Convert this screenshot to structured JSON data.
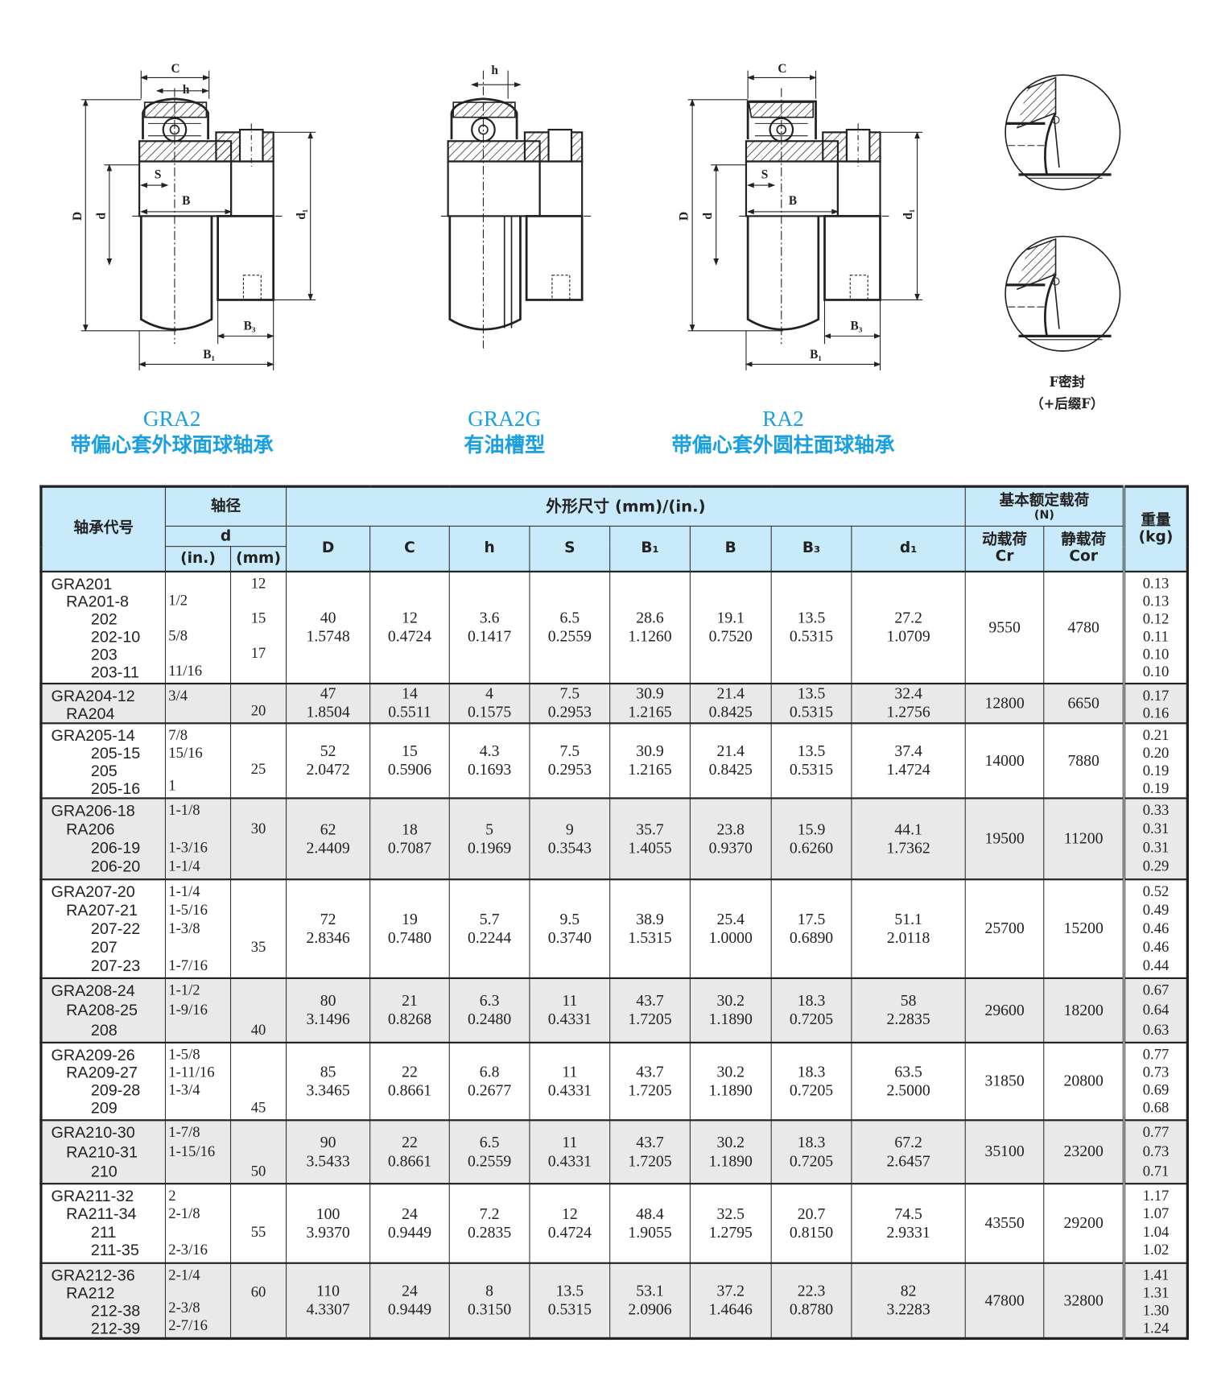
{
  "diagrams": [
    {
      "model": "GRA2",
      "caption": "带偏心套外球面球轴承",
      "labels": {
        "C": "C",
        "h": "h",
        "S": "S",
        "B": "B",
        "D": "D",
        "d": "d",
        "d1": "d₁",
        "B3": "B₃",
        "B1": "B₁"
      }
    },
    {
      "model": "GRA2G",
      "caption": "有油槽型",
      "labels": {
        "h": "h"
      }
    },
    {
      "model": "RA2",
      "caption": "带偏心套外圆柱面球轴承",
      "labels": {
        "C": "C",
        "S": "S",
        "B": "B",
        "D": "D",
        "d": "d",
        "d1": "d₁",
        "B3": "B₃",
        "B1": "B₁"
      }
    }
  ],
  "seal": {
    "title": "F密封",
    "suffix": "（+后缀F）"
  },
  "colors": {
    "caption": "#1aa0e0",
    "header_bg": "#c8eafa",
    "alt_row_bg": "#e9e9e9"
  },
  "table": {
    "headers": {
      "model": "轴承代号",
      "shaft": "轴径",
      "d": "d",
      "inch": "(in.)",
      "mm": "(mm)",
      "dims": "外形尺寸 (mm)/(in.)",
      "dim_cols": [
        "D",
        "C",
        "h",
        "S",
        "B₁",
        "B",
        "B₃",
        "d₁"
      ],
      "load": "基本额定载荷",
      "load_unit": "(N)",
      "cr": "动载荷",
      "cr_sym": "Cr",
      "cor": "静载荷",
      "cor_sym": "Cor",
      "weight": "重量",
      "weight_unit": "(kg)"
    },
    "rows": [
      {
        "models": [
          "GRA201",
          "RA201-8",
          "202",
          "202-10",
          "203",
          "203-11"
        ],
        "inch": [
          "",
          "1/2",
          "",
          "5/8",
          "",
          "11/16"
        ],
        "mm": [
          "12",
          "",
          "15",
          "",
          "17",
          ""
        ],
        "dims": [
          [
            "40",
            "1.5748"
          ],
          [
            "12",
            "0.4724"
          ],
          [
            "3.6",
            "0.1417"
          ],
          [
            "6.5",
            "0.2559"
          ],
          [
            "28.6",
            "1.1260"
          ],
          [
            "19.1",
            "0.7520"
          ],
          [
            "13.5",
            "0.5315"
          ],
          [
            "27.2",
            "1.0709"
          ]
        ],
        "cr": "9550",
        "cor": "4780",
        "weights": [
          "0.13",
          "0.13",
          "0.12",
          "0.11",
          "0.10",
          "0.10"
        ]
      },
      {
        "models": [
          "GRA204-12",
          "RA204"
        ],
        "inch": [
          "3/4",
          ""
        ],
        "mm": [
          "",
          "20"
        ],
        "dims": [
          [
            "47",
            "1.8504"
          ],
          [
            "14",
            "0.5511"
          ],
          [
            "4",
            "0.1575"
          ],
          [
            "7.5",
            "0.2953"
          ],
          [
            "30.9",
            "1.2165"
          ],
          [
            "21.4",
            "0.8425"
          ],
          [
            "13.5",
            "0.5315"
          ],
          [
            "32.4",
            "1.2756"
          ]
        ],
        "cr": "12800",
        "cor": "6650",
        "weights": [
          "0.17",
          "0.16"
        ]
      },
      {
        "models": [
          "GRA205-14",
          "205-15",
          "205",
          "205-16"
        ],
        "inch": [
          "7/8",
          "15/16",
          "",
          "1"
        ],
        "mm": [
          "",
          "",
          "25",
          ""
        ],
        "dims": [
          [
            "52",
            "2.0472"
          ],
          [
            "15",
            "0.5906"
          ],
          [
            "4.3",
            "0.1693"
          ],
          [
            "7.5",
            "0.2953"
          ],
          [
            "30.9",
            "1.2165"
          ],
          [
            "21.4",
            "0.8425"
          ],
          [
            "13.5",
            "0.5315"
          ],
          [
            "37.4",
            "1.4724"
          ]
        ],
        "cr": "14000",
        "cor": "7880",
        "weights": [
          "0.21",
          "0.20",
          "0.19",
          "0.19"
        ]
      },
      {
        "models": [
          "GRA206-18",
          "RA206",
          "206-19",
          "206-20"
        ],
        "inch": [
          "1-1/8",
          "",
          "1-3/16",
          "1-1/4"
        ],
        "mm": [
          "",
          "30",
          "",
          ""
        ],
        "dims": [
          [
            "62",
            "2.4409"
          ],
          [
            "18",
            "0.7087"
          ],
          [
            "5",
            "0.1969"
          ],
          [
            "9",
            "0.3543"
          ],
          [
            "35.7",
            "1.4055"
          ],
          [
            "23.8",
            "0.9370"
          ],
          [
            "15.9",
            "0.6260"
          ],
          [
            "44.1",
            "1.7362"
          ]
        ],
        "cr": "19500",
        "cor": "11200",
        "weights": [
          "0.33",
          "0.31",
          "0.31",
          "0.29"
        ]
      },
      {
        "models": [
          "GRA207-20",
          "RA207-21",
          "207-22",
          "207",
          "207-23"
        ],
        "inch": [
          "1-1/4",
          "1-5/16",
          "1-3/8",
          "",
          "1-7/16"
        ],
        "mm": [
          "",
          "",
          "",
          "35",
          ""
        ],
        "dims": [
          [
            "72",
            "2.8346"
          ],
          [
            "19",
            "0.7480"
          ],
          [
            "5.7",
            "0.2244"
          ],
          [
            "9.5",
            "0.3740"
          ],
          [
            "38.9",
            "1.5315"
          ],
          [
            "25.4",
            "1.0000"
          ],
          [
            "17.5",
            "0.6890"
          ],
          [
            "51.1",
            "2.0118"
          ]
        ],
        "cr": "25700",
        "cor": "15200",
        "weights": [
          "0.52",
          "0.49",
          "0.46",
          "0.46",
          "0.44"
        ]
      },
      {
        "models": [
          "GRA208-24",
          "RA208-25",
          "208"
        ],
        "inch": [
          "1-1/2",
          "1-9/16",
          ""
        ],
        "mm": [
          "",
          "",
          "40"
        ],
        "dims": [
          [
            "80",
            "3.1496"
          ],
          [
            "21",
            "0.8268"
          ],
          [
            "6.3",
            "0.2480"
          ],
          [
            "11",
            "0.4331"
          ],
          [
            "43.7",
            "1.7205"
          ],
          [
            "30.2",
            "1.1890"
          ],
          [
            "18.3",
            "0.7205"
          ],
          [
            "58",
            "2.2835"
          ]
        ],
        "cr": "29600",
        "cor": "18200",
        "weights": [
          "0.67",
          "0.64",
          "0.63"
        ]
      },
      {
        "models": [
          "GRA209-26",
          "RA209-27",
          "209-28",
          "209"
        ],
        "inch": [
          "1-5/8",
          "1-11/16",
          "1-3/4",
          ""
        ],
        "mm": [
          "",
          "",
          "",
          "45"
        ],
        "dims": [
          [
            "85",
            "3.3465"
          ],
          [
            "22",
            "0.8661"
          ],
          [
            "6.8",
            "0.2677"
          ],
          [
            "11",
            "0.4331"
          ],
          [
            "43.7",
            "1.7205"
          ],
          [
            "30.2",
            "1.1890"
          ],
          [
            "18.3",
            "0.7205"
          ],
          [
            "63.5",
            "2.5000"
          ]
        ],
        "cr": "31850",
        "cor": "20800",
        "weights": [
          "0.77",
          "0.73",
          "0.69",
          "0.68"
        ]
      },
      {
        "models": [
          "GRA210-30",
          "RA210-31",
          "210"
        ],
        "inch": [
          "1-7/8",
          "1-15/16",
          ""
        ],
        "mm": [
          "",
          "",
          "50"
        ],
        "dims": [
          [
            "90",
            "3.5433"
          ],
          [
            "22",
            "0.8661"
          ],
          [
            "6.5",
            "0.2559"
          ],
          [
            "11",
            "0.4331"
          ],
          [
            "43.7",
            "1.7205"
          ],
          [
            "30.2",
            "1.1890"
          ],
          [
            "18.3",
            "0.7205"
          ],
          [
            "67.2",
            "2.6457"
          ]
        ],
        "cr": "35100",
        "cor": "23200",
        "weights": [
          "0.77",
          "0.73",
          "0.71"
        ]
      },
      {
        "models": [
          "GRA211-32",
          "RA211-34",
          "211",
          "211-35"
        ],
        "inch": [
          "2",
          "2-1/8",
          "",
          "2-3/16"
        ],
        "mm": [
          "",
          "",
          "55",
          ""
        ],
        "dims": [
          [
            "100",
            "3.9370"
          ],
          [
            "24",
            "0.9449"
          ],
          [
            "7.2",
            "0.2835"
          ],
          [
            "12",
            "0.4724"
          ],
          [
            "48.4",
            "1.9055"
          ],
          [
            "32.5",
            "1.2795"
          ],
          [
            "20.7",
            "0.8150"
          ],
          [
            "74.5",
            "2.9331"
          ]
        ],
        "cr": "43550",
        "cor": "29200",
        "weights": [
          "1.17",
          "1.07",
          "1.04",
          "1.02"
        ]
      },
      {
        "models": [
          "GRA212-36",
          "RA212",
          "212-38",
          "212-39"
        ],
        "inch": [
          "2-1/4",
          "",
          "2-3/8",
          "2-7/16"
        ],
        "mm": [
          "",
          "60",
          "",
          ""
        ],
        "dims": [
          [
            "110",
            "4.3307"
          ],
          [
            "24",
            "0.9449"
          ],
          [
            "8",
            "0.3150"
          ],
          [
            "13.5",
            "0.5315"
          ],
          [
            "53.1",
            "2.0906"
          ],
          [
            "37.2",
            "1.4646"
          ],
          [
            "22.3",
            "0.8780"
          ],
          [
            "82",
            "3.2283"
          ]
        ],
        "cr": "47800",
        "cor": "32800",
        "weights": [
          "1.41",
          "1.31",
          "1.30",
          "1.24"
        ]
      }
    ]
  }
}
